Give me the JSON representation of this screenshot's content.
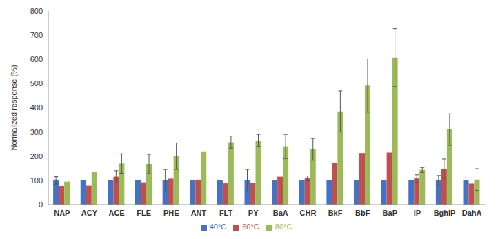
{
  "chart_data": {
    "type": "bar",
    "y_label": "Normalized response (%)",
    "categories": [
      "NAP",
      "ACY",
      "ACE",
      "FLE",
      "PHE",
      "ANT",
      "FLT",
      "PY",
      "BaA",
      "CHR",
      "BkF",
      "BbF",
      "BaP",
      "IP",
      "BghiP",
      "DahA"
    ],
    "series": [
      {
        "name": "40°C",
        "color": "#4472c4",
        "values": [
          100,
          100,
          100,
          100,
          100,
          100,
          100,
          100,
          100,
          100,
          100,
          100,
          100,
          100,
          100,
          100
        ],
        "errors": [
          15,
          0,
          0,
          0,
          45,
          0,
          0,
          45,
          0,
          0,
          0,
          0,
          0,
          0,
          20,
          10
        ]
      },
      {
        "name": "60°C",
        "color": "#c0504d",
        "values": [
          77,
          78,
          115,
          92,
          107,
          103,
          88,
          90,
          115,
          108,
          172,
          213,
          215,
          108,
          148,
          87
        ],
        "errors": [
          0,
          0,
          25,
          0,
          0,
          0,
          0,
          0,
          0,
          10,
          0,
          0,
          0,
          15,
          40,
          0
        ]
      },
      {
        "name": "80°C",
        "color": "#9bbb59",
        "values": [
          95,
          135,
          170,
          168,
          200,
          220,
          258,
          265,
          240,
          228,
          385,
          492,
          607,
          143,
          310,
          103
        ],
        "errors": [
          0,
          0,
          40,
          40,
          55,
          0,
          25,
          25,
          50,
          45,
          85,
          110,
          120,
          10,
          65,
          45
        ]
      }
    ],
    "ylim": [
      0,
      800
    ],
    "yticks": [
      0,
      100,
      200,
      300,
      400,
      500,
      600,
      700,
      800
    ],
    "grid": false,
    "legend": "bottom"
  }
}
